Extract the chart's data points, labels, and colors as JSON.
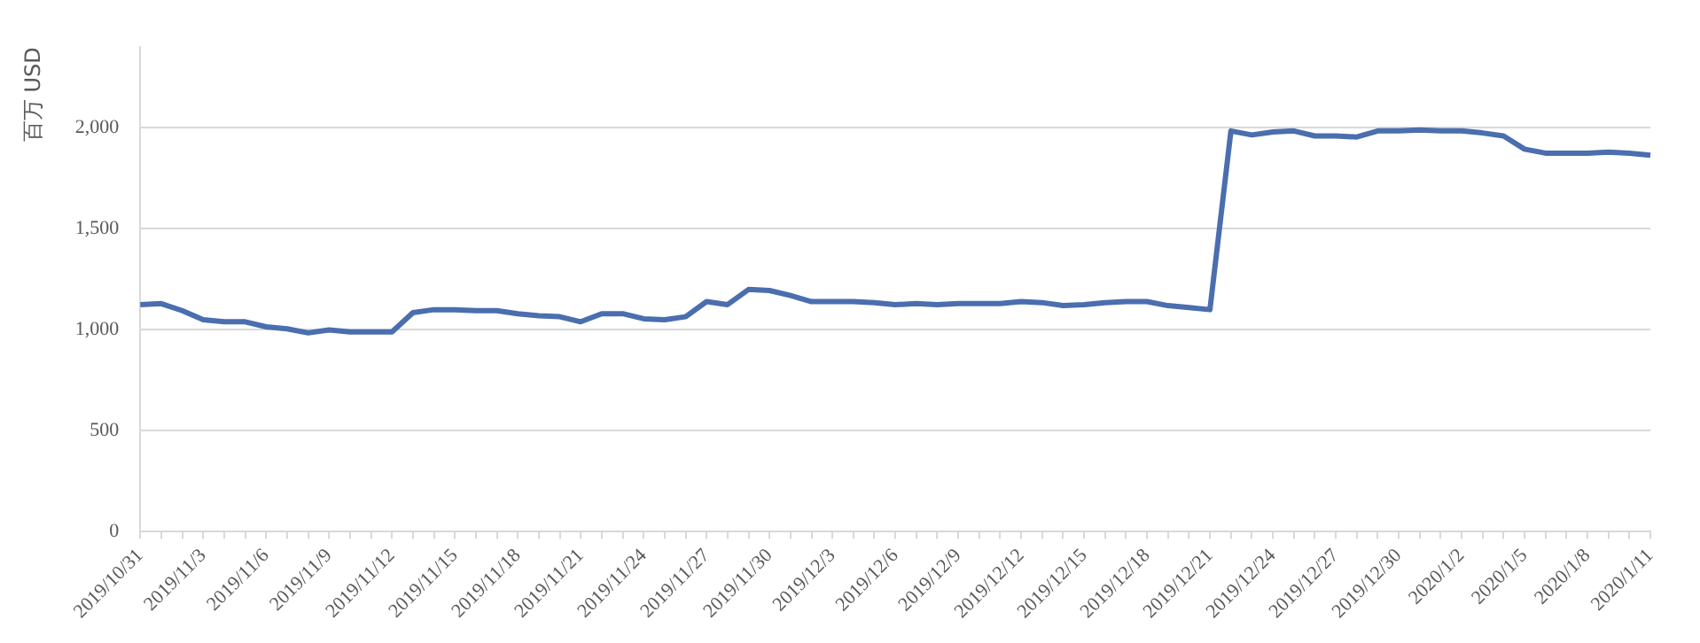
{
  "chart_data": {
    "type": "line",
    "ylabel": "百万 USD",
    "categories": [
      "2019/10/31",
      null,
      null,
      "2019/11/3",
      null,
      null,
      "2019/11/6",
      null,
      null,
      "2019/11/9",
      null,
      null,
      "2019/11/12",
      null,
      null,
      "2019/11/15",
      null,
      null,
      "2019/11/18",
      null,
      null,
      "2019/11/21",
      null,
      null,
      "2019/11/24",
      null,
      null,
      "2019/11/27",
      null,
      null,
      "2019/11/30",
      null,
      null,
      "2019/12/3",
      null,
      null,
      "2019/12/6",
      null,
      null,
      "2019/12/9",
      null,
      null,
      "2019/12/12",
      null,
      null,
      "2019/12/15",
      null,
      null,
      "2019/12/18",
      null,
      null,
      "2019/12/21",
      null,
      null,
      "2019/12/24",
      null,
      null,
      "2019/12/27",
      null,
      null,
      "2019/12/30",
      null,
      null,
      "2020/1/2",
      null,
      null,
      "2020/1/5",
      null,
      null,
      "2020/1/8",
      null,
      null,
      "2020/1/11"
    ],
    "series": [
      {
        "color": "#4a6eae",
        "values": [
          1125,
          1130,
          1095,
          1050,
          1040,
          1040,
          1015,
          1005,
          985,
          1000,
          990,
          990,
          990,
          1085,
          1100,
          1100,
          1095,
          1095,
          1080,
          1070,
          1065,
          1040,
          1080,
          1080,
          1055,
          1050,
          1065,
          1140,
          1125,
          1200,
          1195,
          1170,
          1140,
          1140,
          1140,
          1135,
          1125,
          1130,
          1125,
          1130,
          1130,
          1130,
          1140,
          1135,
          1120,
          1125,
          1135,
          1140,
          1140,
          1120,
          1110,
          1100,
          1985,
          1965,
          1980,
          1985,
          1960,
          1960,
          1955,
          1985,
          1985,
          1990,
          1985,
          1985,
          1975,
          1960,
          1895,
          1875,
          1875,
          1875,
          1880,
          1875,
          1865
        ]
      }
    ],
    "ylim": [
      0,
      2400
    ],
    "yticks": [
      0,
      500,
      {
        "value": 1000,
        "label": "1,000"
      },
      {
        "value": 1500,
        "label": "1,500"
      },
      {
        "value": 2000,
        "label": "2,000"
      }
    ],
    "grid": "y",
    "legend": false,
    "marker": "none",
    "line_style": "solid"
  }
}
